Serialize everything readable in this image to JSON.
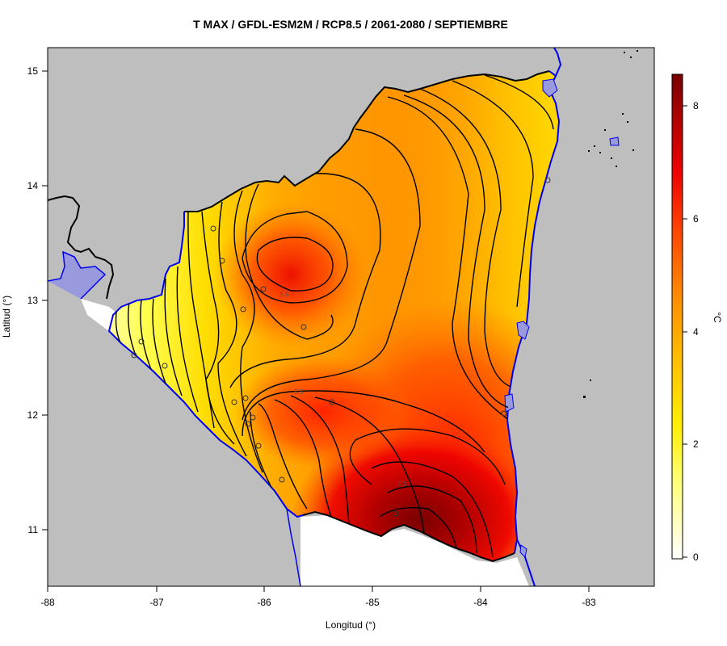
{
  "title": "T MAX / GFDL-ESM2M / RCP8.5 / 2061-2080 / SEPTIEMBRE",
  "x_axis": {
    "label": "Longitud (°)",
    "ticks": [
      "-88",
      "-87",
      "-86",
      "-85",
      "-84",
      "-83"
    ]
  },
  "y_axis": {
    "label": "Latitud (°)",
    "ticks": [
      "11",
      "12",
      "13",
      "14",
      "15"
    ]
  },
  "colorbar": {
    "unit": "°C",
    "ticks": [
      "0",
      "2",
      "4",
      "6",
      "8"
    ],
    "range": [
      -0.2,
      8.6
    ],
    "colors": [
      "#ffffff",
      "#ffff66",
      "#ffe000",
      "#ffb000",
      "#ff8000",
      "#ff4000",
      "#ee0000",
      "#a00000",
      "#7a0000"
    ]
  },
  "contour_labels": [
    "5.5",
    "7.5"
  ],
  "colors": {
    "ocean_land_background": "#bebebe",
    "coastline": "#0000ff",
    "lakes": "#9999dd",
    "border": "#000000",
    "contour": "#000000"
  }
}
